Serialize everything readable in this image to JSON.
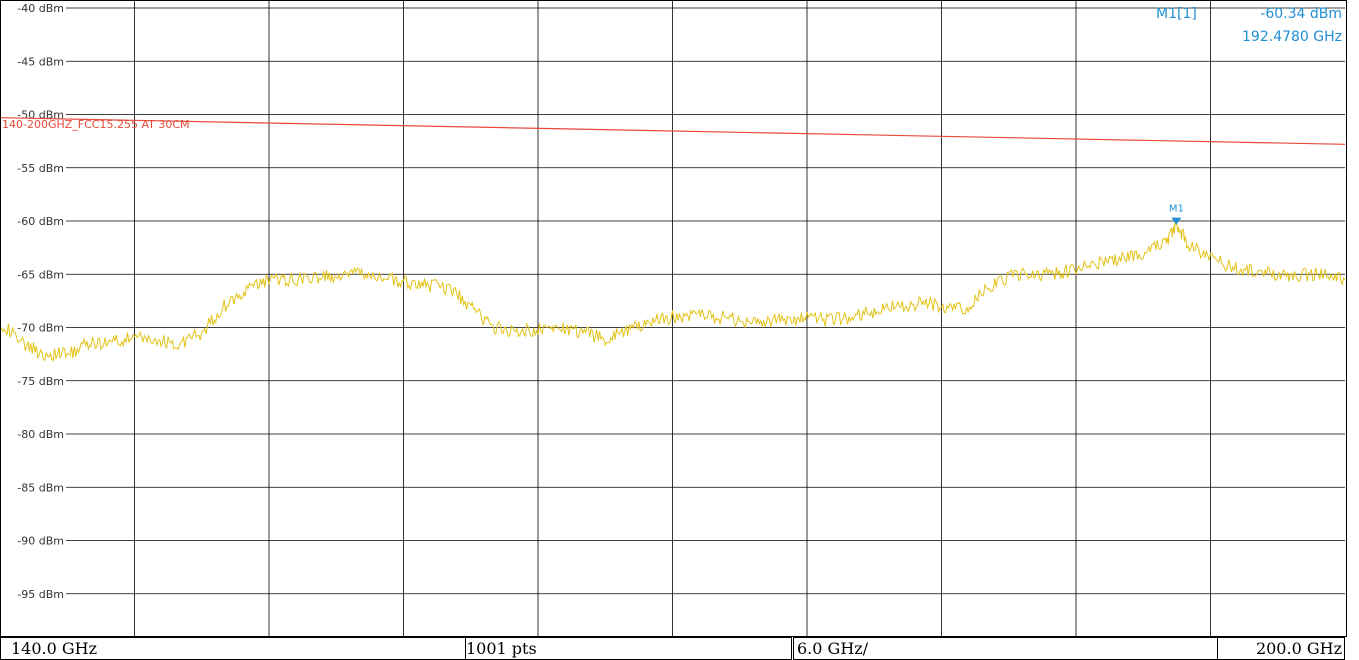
{
  "chart_data": {
    "type": "line",
    "y_unit": "dBm",
    "ylim": [
      -100,
      -40
    ],
    "y_ticks": [
      -40,
      -45,
      -50,
      -55,
      -60,
      -65,
      -70,
      -75,
      -80,
      -85,
      -90,
      -95
    ],
    "y_tick_labels": [
      "-40 dBm",
      "-45 dBm",
      "-50 dBm",
      "-55 dBm",
      "-60 dBm",
      "-65 dBm",
      "-70 dBm",
      "-75 dBm",
      "-80 dBm",
      "-85 dBm",
      "-90 dBm",
      "-95 dBm"
    ],
    "xlim": [
      140.0,
      200.0
    ],
    "x_unit": "GHz",
    "grid": true,
    "grid_columns": 10,
    "trace": {
      "color": "#e3c31a",
      "x": [
        140,
        141,
        142,
        143,
        144,
        145,
        146,
        147,
        148,
        149,
        150,
        151,
        152,
        153,
        154,
        155,
        156,
        157,
        158,
        159,
        160,
        161,
        162,
        163,
        164,
        165,
        166,
        167,
        168,
        169,
        170,
        171,
        172,
        173,
        174,
        175,
        176,
        177,
        178,
        179,
        180,
        181,
        182,
        183,
        184,
        185,
        186,
        187,
        188,
        189,
        190,
        191,
        192,
        192.478,
        193,
        194,
        195,
        196,
        197,
        198,
        199,
        200
      ],
      "y": [
        -69.5,
        -71.5,
        -72.5,
        -72.5,
        -71.5,
        -71.3,
        -71,
        -71.2,
        -71.5,
        -70.5,
        -68,
        -66.5,
        -65.5,
        -65.5,
        -65.3,
        -65.2,
        -65,
        -65.3,
        -65.8,
        -66,
        -66.3,
        -68,
        -70,
        -70.3,
        -70.2,
        -70,
        -70.5,
        -71,
        -70.3,
        -69.5,
        -69,
        -68.8,
        -69,
        -69.3,
        -69.5,
        -69.3,
        -69.2,
        -69.3,
        -69,
        -68.5,
        -68,
        -67.7,
        -68,
        -68.3,
        -66.5,
        -65.2,
        -65,
        -65,
        -64.5,
        -64,
        -63.5,
        -63,
        -62,
        -60.34,
        -62.2,
        -63.5,
        -64.3,
        -64.8,
        -65,
        -65.1,
        -65,
        -65.5
      ]
    },
    "limit_line": {
      "label": "140-200GHZ_FCC15.255 AT 30CM",
      "color": "#e8493a",
      "x": [
        140,
        200
      ],
      "y": [
        -50.3,
        -52.8
      ]
    },
    "marker": {
      "tag": "M1",
      "readout_name": "M1[1]",
      "readout_value": "-60.34 dBm",
      "readout_freq": "192.4780 GHz",
      "x": 192.478,
      "y": -60.34,
      "color": "#1f8fd6"
    }
  },
  "footer": {
    "start": "140.0 GHz",
    "points": "1001 pts",
    "span_div": "6.0 GHz/",
    "stop": "200.0 GHz"
  }
}
